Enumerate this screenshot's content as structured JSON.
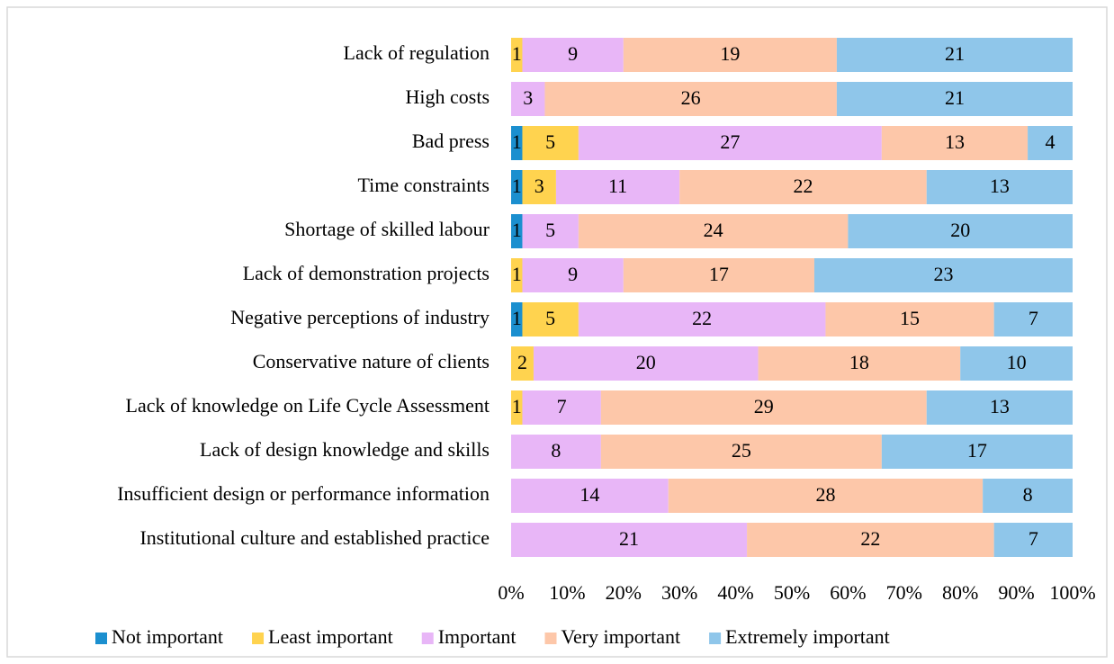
{
  "chart_data": {
    "type": "stacked-bar-100",
    "categories": [
      "Lack of regulation",
      "High costs",
      "Bad press",
      "Time constraints",
      "Shortage of skilled labour",
      "Lack of demonstration projects",
      "Negative perceptions of industry",
      "Conservative nature of clients",
      "Lack of knowledge on Life Cycle Assessment",
      "Lack of design knowledge and skills",
      "Insufficient design or performance information",
      "Institutional culture and established practice"
    ],
    "series": [
      {
        "name": "Not important",
        "color": "#1b8fcf",
        "values": [
          0,
          0,
          1,
          1,
          1,
          0,
          1,
          0,
          0,
          0,
          0,
          0
        ]
      },
      {
        "name": "Least important",
        "color": "#ffd34f",
        "values": [
          1,
          0,
          5,
          3,
          0,
          1,
          5,
          2,
          1,
          0,
          0,
          0
        ]
      },
      {
        "name": "Important",
        "color": "#e8b6f7",
        "values": [
          9,
          3,
          27,
          11,
          5,
          9,
          22,
          20,
          7,
          8,
          14,
          21
        ]
      },
      {
        "name": "Very important",
        "color": "#fdc7a9",
        "values": [
          19,
          26,
          13,
          22,
          24,
          17,
          15,
          18,
          29,
          25,
          28,
          22
        ]
      },
      {
        "name": "Extremely important",
        "color": "#8fc6ea",
        "values": [
          21,
          21,
          4,
          13,
          20,
          23,
          7,
          10,
          13,
          17,
          8,
          7
        ]
      }
    ],
    "xlim": [
      0,
      100
    ],
    "xticks": [
      {
        "value": 0,
        "label": "0%"
      },
      {
        "value": 10,
        "label": "10%"
      },
      {
        "value": 20,
        "label": "20%"
      },
      {
        "value": 30,
        "label": "30%"
      },
      {
        "value": 40,
        "label": "40%"
      },
      {
        "value": 50,
        "label": "50%"
      },
      {
        "value": 60,
        "label": "60%"
      },
      {
        "value": 70,
        "label": "70%"
      },
      {
        "value": 80,
        "label": "80%"
      },
      {
        "value": 90,
        "label": "90%"
      },
      {
        "value": 100,
        "label": "100%"
      }
    ],
    "legend": "bottom"
  }
}
